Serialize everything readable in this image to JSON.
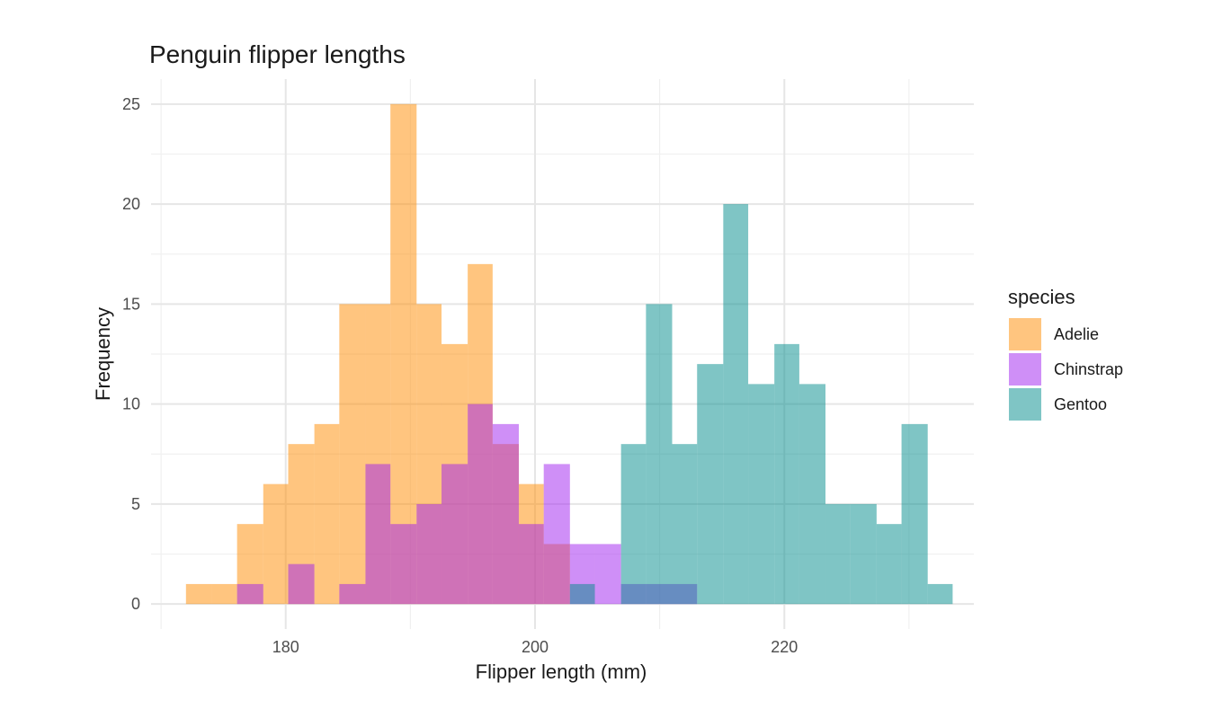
{
  "chart_data": {
    "type": "bar",
    "title": "Penguin flipper lengths",
    "xlabel": "Flipper length (mm)",
    "ylabel": "Frequency",
    "xlim": [
      169.2,
      235.2
    ],
    "ylim": [
      -1.25,
      26.25
    ],
    "x_ticks": [
      180,
      200,
      220
    ],
    "y_ticks": [
      0,
      5,
      10,
      15,
      20,
      25
    ],
    "grid": true,
    "legend_title": "species",
    "legend_position": "right",
    "series": [
      {
        "name": "Adelie",
        "color": "#FF8C00",
        "bins": [
          {
            "x0": 172.0,
            "x1": 174.1,
            "count": 1
          },
          {
            "x0": 174.1,
            "x1": 176.1,
            "count": 1
          },
          {
            "x0": 176.1,
            "x1": 178.2,
            "count": 4
          },
          {
            "x0": 178.2,
            "x1": 180.2,
            "count": 6
          },
          {
            "x0": 180.2,
            "x1": 182.3,
            "count": 8
          },
          {
            "x0": 182.3,
            "x1": 184.3,
            "count": 9
          },
          {
            "x0": 184.3,
            "x1": 186.4,
            "count": 15
          },
          {
            "x0": 186.4,
            "x1": 188.4,
            "count": 15
          },
          {
            "x0": 188.4,
            "x1": 190.5,
            "count": 25
          },
          {
            "x0": 190.5,
            "x1": 192.5,
            "count": 15
          },
          {
            "x0": 192.5,
            "x1": 194.6,
            "count": 13
          },
          {
            "x0": 194.6,
            "x1": 196.6,
            "count": 17
          },
          {
            "x0": 196.6,
            "x1": 198.7,
            "count": 8
          },
          {
            "x0": 198.7,
            "x1": 200.7,
            "count": 6
          },
          {
            "x0": 200.7,
            "x1": 202.8,
            "count": 3
          }
        ]
      },
      {
        "name": "Chinstrap",
        "color": "#A020F0",
        "bins": [
          {
            "x0": 176.1,
            "x1": 178.2,
            "count": 1
          },
          {
            "x0": 180.2,
            "x1": 182.3,
            "count": 2
          },
          {
            "x0": 184.3,
            "x1": 186.4,
            "count": 1
          },
          {
            "x0": 186.4,
            "x1": 188.4,
            "count": 7
          },
          {
            "x0": 188.4,
            "x1": 190.5,
            "count": 4
          },
          {
            "x0": 190.5,
            "x1": 192.5,
            "count": 5
          },
          {
            "x0": 192.5,
            "x1": 194.6,
            "count": 7
          },
          {
            "x0": 194.6,
            "x1": 196.6,
            "count": 10
          },
          {
            "x0": 196.6,
            "x1": 198.7,
            "count": 9
          },
          {
            "x0": 198.7,
            "x1": 200.7,
            "count": 4
          },
          {
            "x0": 200.7,
            "x1": 202.8,
            "count": 7
          },
          {
            "x0": 202.8,
            "x1": 204.8,
            "count": 3
          },
          {
            "x0": 204.8,
            "x1": 206.9,
            "count": 3
          },
          {
            "x0": 206.9,
            "x1": 208.9,
            "count": 1
          },
          {
            "x0": 208.9,
            "x1": 211.0,
            "count": 1
          },
          {
            "x0": 211.0,
            "x1": 213.0,
            "count": 1
          }
        ]
      },
      {
        "name": "Gentoo",
        "color": "#008B8B",
        "bins": [
          {
            "x0": 202.8,
            "x1": 204.8,
            "count": 1
          },
          {
            "x0": 206.9,
            "x1": 208.9,
            "count": 8
          },
          {
            "x0": 208.9,
            "x1": 211.0,
            "count": 15
          },
          {
            "x0": 211.0,
            "x1": 213.0,
            "count": 8
          },
          {
            "x0": 213.0,
            "x1": 215.1,
            "count": 12
          },
          {
            "x0": 215.1,
            "x1": 217.1,
            "count": 20
          },
          {
            "x0": 217.1,
            "x1": 219.2,
            "count": 11
          },
          {
            "x0": 219.2,
            "x1": 221.2,
            "count": 13
          },
          {
            "x0": 221.2,
            "x1": 223.3,
            "count": 11
          },
          {
            "x0": 223.3,
            "x1": 225.3,
            "count": 5
          },
          {
            "x0": 225.3,
            "x1": 227.4,
            "count": 5
          },
          {
            "x0": 227.4,
            "x1": 229.4,
            "count": 4
          },
          {
            "x0": 229.4,
            "x1": 231.5,
            "count": 9
          },
          {
            "x0": 231.5,
            "x1": 233.5,
            "count": 1
          }
        ]
      }
    ]
  }
}
